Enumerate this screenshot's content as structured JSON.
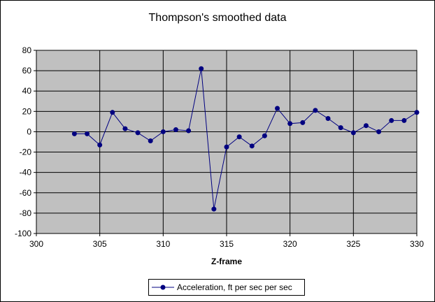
{
  "chart_data": {
    "type": "line",
    "title": "Thompson's smoothed data",
    "xlabel": "Z-frame",
    "ylabel": "",
    "xlim": [
      300,
      330
    ],
    "ylim": [
      -100,
      80
    ],
    "xticks": [
      300,
      305,
      310,
      315,
      320,
      325,
      330
    ],
    "yticks": [
      80,
      60,
      40,
      20,
      0,
      -20,
      -40,
      -60,
      -80,
      -100
    ],
    "grid": true,
    "plot_background": "#c0c0c0",
    "legend_position": "bottom",
    "series": [
      {
        "name": "Acceleration, ft per sec per sec",
        "color": "#000080",
        "x": [
          303,
          304,
          305,
          306,
          307,
          308,
          309,
          310,
          311,
          312,
          313,
          314,
          315,
          316,
          317,
          318,
          319,
          320,
          321,
          322,
          323,
          324,
          325,
          326,
          327,
          328,
          329,
          330
        ],
        "y": [
          -2,
          -2,
          -13,
          19,
          3,
          -1,
          -9,
          0,
          2,
          1,
          62,
          -76,
          -15,
          -5,
          -14,
          -4,
          23,
          8,
          9,
          21,
          13,
          4,
          -1,
          6,
          0,
          11,
          11,
          19
        ]
      }
    ]
  }
}
